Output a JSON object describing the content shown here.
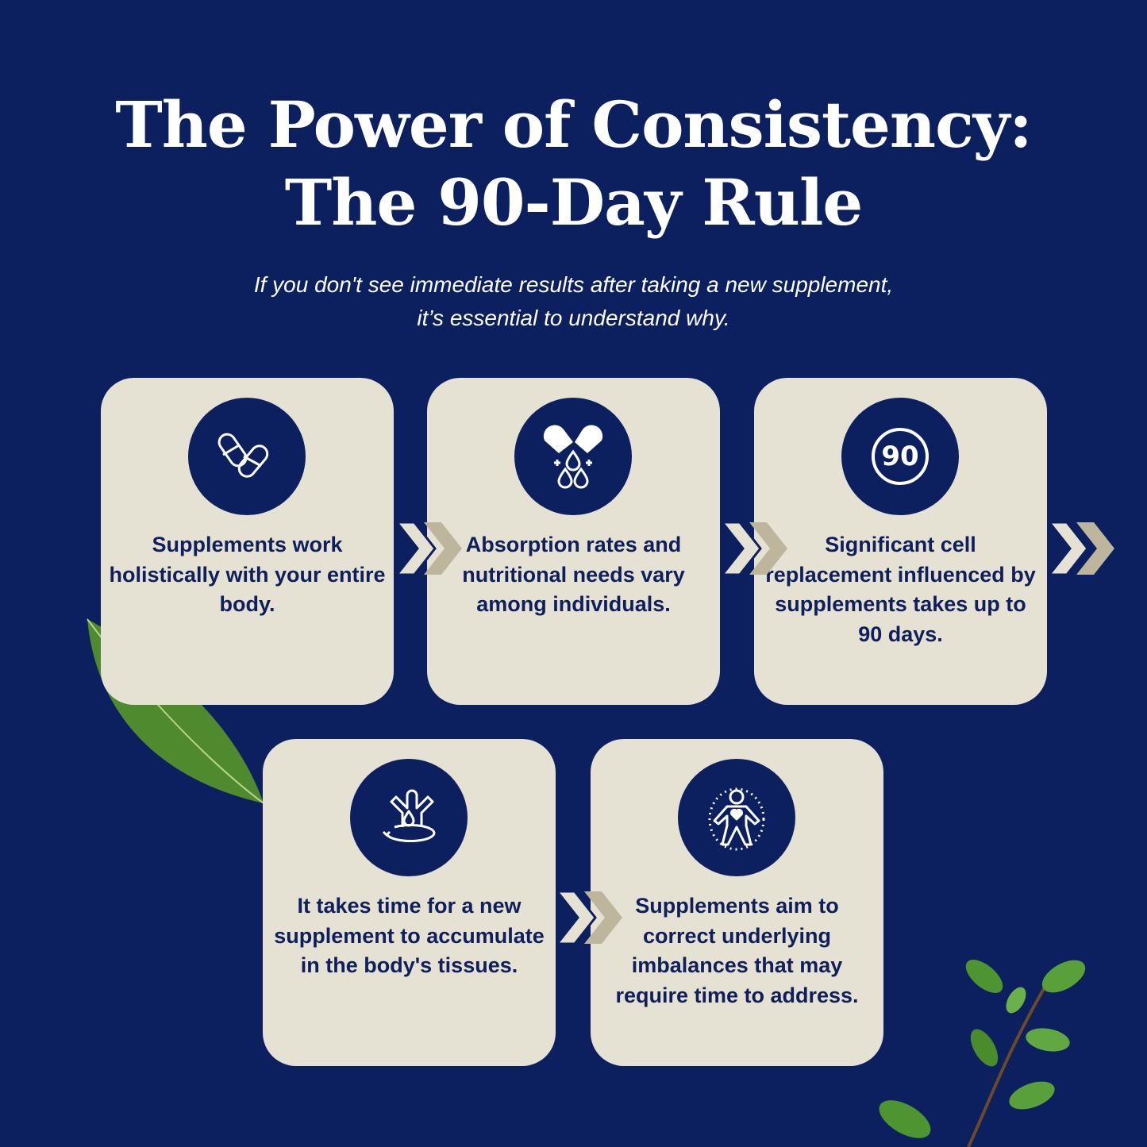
{
  "header": {
    "title_line1": "The Power of Consistency:",
    "title_line2": "The 90-Day Rule",
    "subtitle_line1": "If you don't see immediate results after taking a new supplement,",
    "subtitle_line2": "it’s essential to understand why."
  },
  "colors": {
    "background": "#0c1f5e",
    "card": "#e6e2d3",
    "text": "#0e1f5c",
    "chevron_light": "#e6e2d3",
    "chevron_dark": "#bdb69c"
  },
  "cards": [
    {
      "icon": "capsules-icon",
      "text": "Supplements work holistically with your entire body."
    },
    {
      "icon": "capsule-drops-icon",
      "text": "Absorption rates and nutritional needs vary among individuals."
    },
    {
      "icon": "ninety-days-icon",
      "icon_text": "90",
      "text": "Significant cell replacement influenced by supplements takes up to 90 days."
    },
    {
      "icon": "body-absorption-icon",
      "text": "It takes time for a new supplement to accumulate in the body's tissues."
    },
    {
      "icon": "body-heart-icon",
      "text": "Supplements aim to correct underlying imbalances that may require time to address."
    }
  ]
}
